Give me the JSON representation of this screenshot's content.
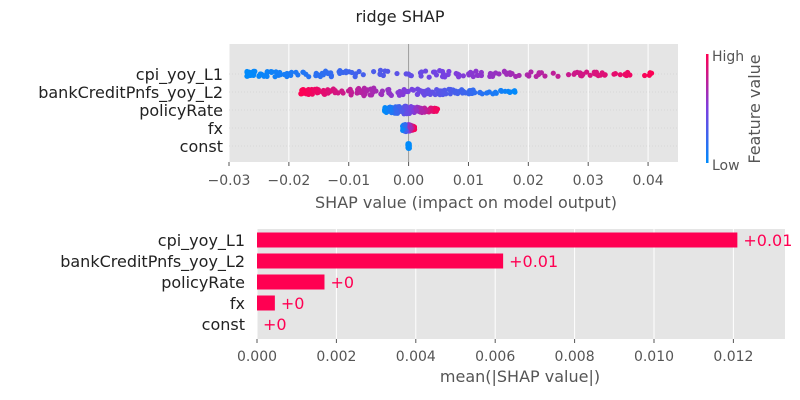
{
  "title": "ridge SHAP",
  "colors": {
    "high": "#ff0052",
    "low": "#008bfb",
    "panel_bg": "#e5e5e5",
    "grid": "#ffffff",
    "zero_line": "#999999"
  },
  "chart_data": [
    {
      "type": "scatter",
      "chart_kind": "shap-beeswarm",
      "xlabel": "SHAP value (impact on model output)",
      "xlim": [
        -0.03,
        0.045
      ],
      "xticks": [
        -0.03,
        -0.02,
        -0.01,
        0.0,
        0.01,
        0.02,
        0.03,
        0.04
      ],
      "xtick_labels": [
        "−0.03",
        "−0.02",
        "−0.01",
        "0.00",
        "0.01",
        "0.02",
        "0.03",
        "0.04"
      ],
      "features": [
        "cpi_yoy_L1",
        "bankCreditPnfs_yoy_L2",
        "policyRate",
        "fx",
        "const"
      ],
      "feature_ranges": {
        "cpi_yoy_L1": [
          -0.027,
          0.041
        ],
        "bankCreditPnfs_yoy_L2": [
          -0.018,
          0.018
        ],
        "policyRate": [
          -0.004,
          0.005
        ],
        "fx": [
          -0.001,
          0.001
        ],
        "const": [
          0.0,
          0.0
        ]
      },
      "colorbar": {
        "label": "Feature value",
        "high_label": "High",
        "low_label": "Low"
      },
      "grid": true
    },
    {
      "type": "bar",
      "orientation": "horizontal",
      "xlabel": "mean(|SHAP value|)",
      "xlim": [
        0,
        0.0133
      ],
      "xticks": [
        0,
        0.002,
        0.004,
        0.006,
        0.008,
        0.01,
        0.012
      ],
      "xtick_labels": [
        "0.000",
        "0.002",
        "0.004",
        "0.006",
        "0.008",
        "0.010",
        "0.012"
      ],
      "categories": [
        "cpi_yoy_L1",
        "bankCreditPnfs_yoy_L2",
        "policyRate",
        "fx",
        "const"
      ],
      "values": [
        0.0121,
        0.0062,
        0.0017,
        0.00045,
        0.0
      ],
      "bar_labels": [
        "+0.01",
        "+0.01",
        "+0",
        "+0",
        "+0"
      ],
      "grid": true
    }
  ]
}
